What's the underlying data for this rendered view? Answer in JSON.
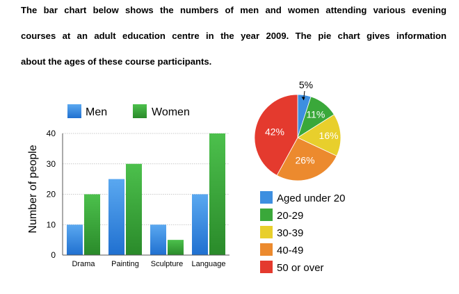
{
  "paragraph": {
    "line1": "The bar chart below shows the numbers of men and women attending various evening",
    "line2": "courses at an adult education centre in the year 2009. The pie chart gives information",
    "line3": "about the ages of these course participants."
  },
  "chart_data": [
    {
      "type": "bar",
      "title": "",
      "xlabel": "",
      "ylabel": "Number of people",
      "categories": [
        "Drama",
        "Painting",
        "Sculpture",
        "Language"
      ],
      "series": [
        {
          "name": "Men",
          "values": [
            10,
            25,
            10,
            20
          ],
          "color": "#3d8fe0"
        },
        {
          "name": "Women",
          "values": [
            20,
            30,
            5,
            40
          ],
          "color": "#3aa83a"
        }
      ],
      "ylim": [
        0,
        40
      ],
      "yticks": [
        0,
        10,
        20,
        30,
        40
      ],
      "grid": true,
      "legend": "top"
    },
    {
      "type": "pie",
      "title": "",
      "slices": [
        {
          "label": "Aged under 20",
          "value": 5,
          "text": "5%",
          "color": "#3d8fe0"
        },
        {
          "label": "20-29",
          "value": 11,
          "text": "11%",
          "color": "#3aa83a"
        },
        {
          "label": "30-39",
          "value": 16,
          "text": "16%",
          "color": "#e8cf2c"
        },
        {
          "label": "40-49",
          "value": 26,
          "text": "26%",
          "color": "#ec8a2e"
        },
        {
          "label": "50 or over",
          "value": 42,
          "text": "42%",
          "color": "#e43a2e"
        }
      ],
      "legend": "bottom"
    }
  ]
}
